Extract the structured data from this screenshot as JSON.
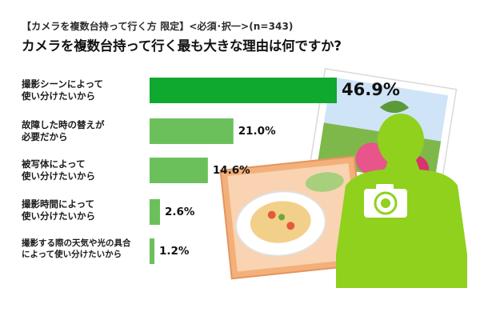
{
  "header": {
    "subtitle": "【カメラを複数台持って行く方 限定】<必須･択一>(n=343)",
    "title": "カメラを複数台持って行く最も大きな理由は何ですか?"
  },
  "colors": {
    "bar_top": "#0ea92e",
    "bar": "#6cc05b",
    "silhouette": "#8fd11c"
  },
  "chart_data": {
    "type": "bar",
    "orientation": "horizontal",
    "categories": [
      "撮影シーンによって\n使い分けたいから",
      "故障した時の替えが\n必要だから",
      "被写体によって\n使い分けたいから",
      "撮影時間によって\n使い分けたいから",
      "撮影する際の天気や光の具合\nによって使い分けたいから"
    ],
    "values": [
      46.9,
      21.0,
      14.6,
      2.6,
      1.2
    ],
    "value_labels": [
      "46.9%",
      "21.0%",
      "14.6%",
      "2.6%",
      "1.2%"
    ],
    "unit": "%",
    "title": "カメラを複数台持って行く最も大きな理由は何ですか?",
    "subtitle": "【カメラを複数台持って行く方 限定】<必須･択一>(n=343)",
    "xlim": [
      0,
      46.9
    ],
    "grid": false,
    "legend": "none"
  }
}
